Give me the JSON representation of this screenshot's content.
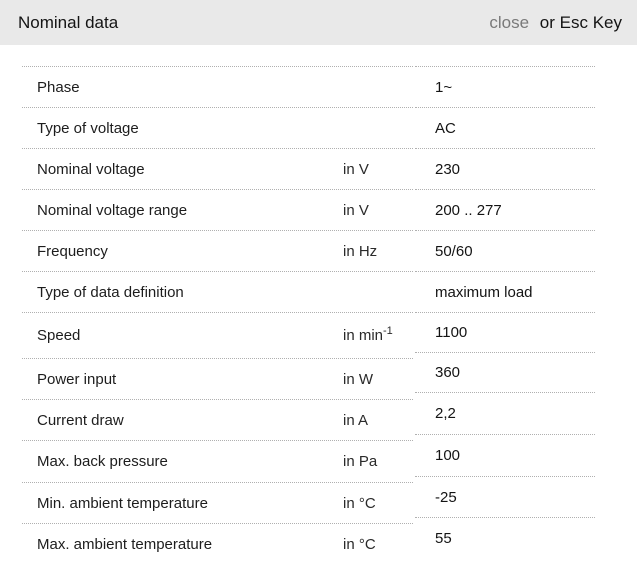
{
  "header": {
    "title": "Nominal data",
    "close_label": "close",
    "close_suffix": "or Esc Key"
  },
  "colors": {
    "header_bg": "#e9e9e9",
    "close_link": "#7a7a7a",
    "row_separator": "#b0b0b0",
    "text": "#1a1a1a"
  },
  "table": {
    "rows": [
      {
        "label": "Phase",
        "unit": "",
        "unit_sup": "",
        "value": "1~"
      },
      {
        "label": "Type of voltage",
        "unit": "",
        "unit_sup": "",
        "value": "AC"
      },
      {
        "label": "Nominal voltage",
        "unit": "in V",
        "unit_sup": "",
        "value": "230"
      },
      {
        "label": "Nominal voltage range",
        "unit": "in V",
        "unit_sup": "",
        "value": "200 .. 277"
      },
      {
        "label": "Frequency",
        "unit": "in Hz",
        "unit_sup": "",
        "value": "50/60"
      },
      {
        "label": "Type of data definition",
        "unit": "",
        "unit_sup": "",
        "value": "maximum load"
      },
      {
        "label": "Speed",
        "unit": "in min",
        "unit_sup": "-1",
        "value": "1100"
      },
      {
        "label": "Power input",
        "unit": "in W",
        "unit_sup": "",
        "value": "360"
      },
      {
        "label": "Current draw",
        "unit": "in A",
        "unit_sup": "",
        "value": "2,2"
      },
      {
        "label": "Max. back pressure",
        "unit": "in Pa",
        "unit_sup": "",
        "value": "100"
      },
      {
        "label": "Min. ambient temperature",
        "unit": "in °C",
        "unit_sup": "",
        "value": "-25"
      },
      {
        "label": "Max. ambient temperature",
        "unit": "in °C",
        "unit_sup": "",
        "value": "55"
      }
    ]
  }
}
